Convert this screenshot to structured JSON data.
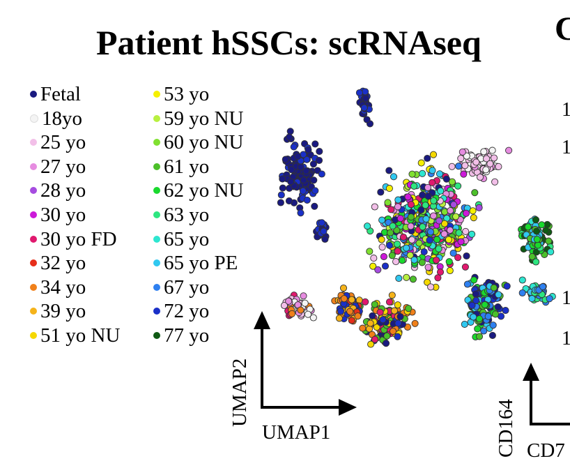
{
  "title": "Patient hSSCs: scRNAseq",
  "next_panel_title": "C",
  "side_ticks": [
    "1",
    "1",
    "1",
    "1"
  ],
  "chart_data": {
    "type": "scatter",
    "title": "Patient hSSCs: scRNAseq",
    "xlabel": "UMAP1",
    "ylabel": "UMAP2",
    "legend_position": "left",
    "grid": false,
    "series": [
      {
        "name": "Fetal",
        "color": "#1a1a80"
      },
      {
        "name": "18yo",
        "color": "#f4f4f4"
      },
      {
        "name": "25 yo",
        "color": "#f2bfe8"
      },
      {
        "name": "27 yo",
        "color": "#e68ce0"
      },
      {
        "name": "28 yo",
        "color": "#a64ce0"
      },
      {
        "name": "30 yo",
        "color": "#cc1ad9"
      },
      {
        "name": "30 yo FD",
        "color": "#e0196e"
      },
      {
        "name": "32 yo",
        "color": "#e62e1a"
      },
      {
        "name": "34 yo",
        "color": "#f0801a"
      },
      {
        "name": "39 yo",
        "color": "#f5b31a"
      },
      {
        "name": "51 yo NU",
        "color": "#f5d800"
      },
      {
        "name": "53 yo",
        "color": "#f5f000"
      },
      {
        "name": "59 yo NU",
        "color": "#b8f040"
      },
      {
        "name": "60 yo NU",
        "color": "#80e030"
      },
      {
        "name": "61 yo",
        "color": "#4cc02a"
      },
      {
        "name": "62 yo NU",
        "color": "#1ad92e"
      },
      {
        "name": "63 yo",
        "color": "#2ee680"
      },
      {
        "name": "65 yo",
        "color": "#2ee6d0"
      },
      {
        "name": "65 yo PE",
        "color": "#30c8f0"
      },
      {
        "name": "67 yo",
        "color": "#2e80f0"
      },
      {
        "name": "72 yo",
        "color": "#1a30c8"
      },
      {
        "name": "77 yo",
        "color": "#0f5a14"
      }
    ],
    "inset_axes": {
      "ylabel": "CD164",
      "xlabel": "CD7"
    }
  }
}
